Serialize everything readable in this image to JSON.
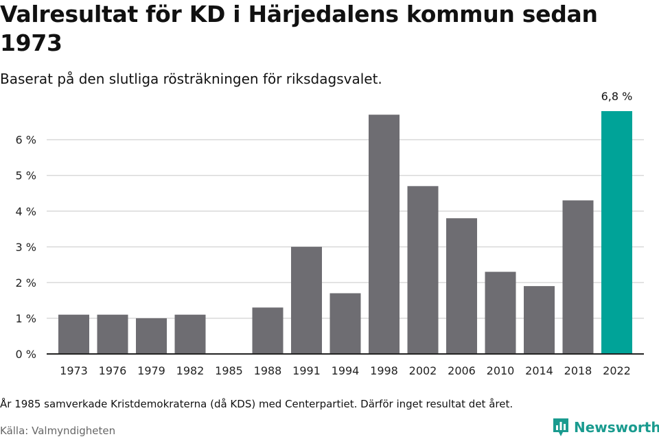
{
  "header": {
    "title": "Valresultat för KD i Härjedalens kommun sedan 1973",
    "subtitle": "Baserat på den slutliga rösträkningen för riksdagsvalet."
  },
  "footer": {
    "note": "År 1985 samverkade Kristdemokraterna (då KDS) med Centerpartiet. Därför inget resultat det året.",
    "source": "Källa: Valmyndigheten",
    "brand": "Newsworthy"
  },
  "colors": {
    "bar": "#6e6d72",
    "highlight": "#00a398",
    "grid": "#d9d9d9",
    "axis": "#222222",
    "brand": "#1a9b8f"
  },
  "chart_data": {
    "type": "bar",
    "title": "Valresultat för KD i Härjedalens kommun sedan 1973",
    "xlabel": "",
    "ylabel": "",
    "categories": [
      "1973",
      "1976",
      "1979",
      "1982",
      "1985",
      "1988",
      "1991",
      "1994",
      "1998",
      "2002",
      "2006",
      "2010",
      "2014",
      "2018",
      "2022"
    ],
    "values": [
      1.1,
      1.1,
      1.0,
      1.1,
      null,
      1.3,
      3.0,
      1.7,
      6.7,
      4.7,
      3.8,
      2.3,
      1.9,
      4.3,
      6.8
    ],
    "highlight_index": 14,
    "highlight_label": "6,8 %",
    "ylim": [
      0,
      6.8
    ],
    "yticks": [
      0,
      1,
      2,
      3,
      4,
      5,
      6
    ],
    "ytick_labels": [
      "0 %",
      "1 %",
      "2 %",
      "3 %",
      "4 %",
      "5 %",
      "6 %"
    ],
    "grid": true
  }
}
